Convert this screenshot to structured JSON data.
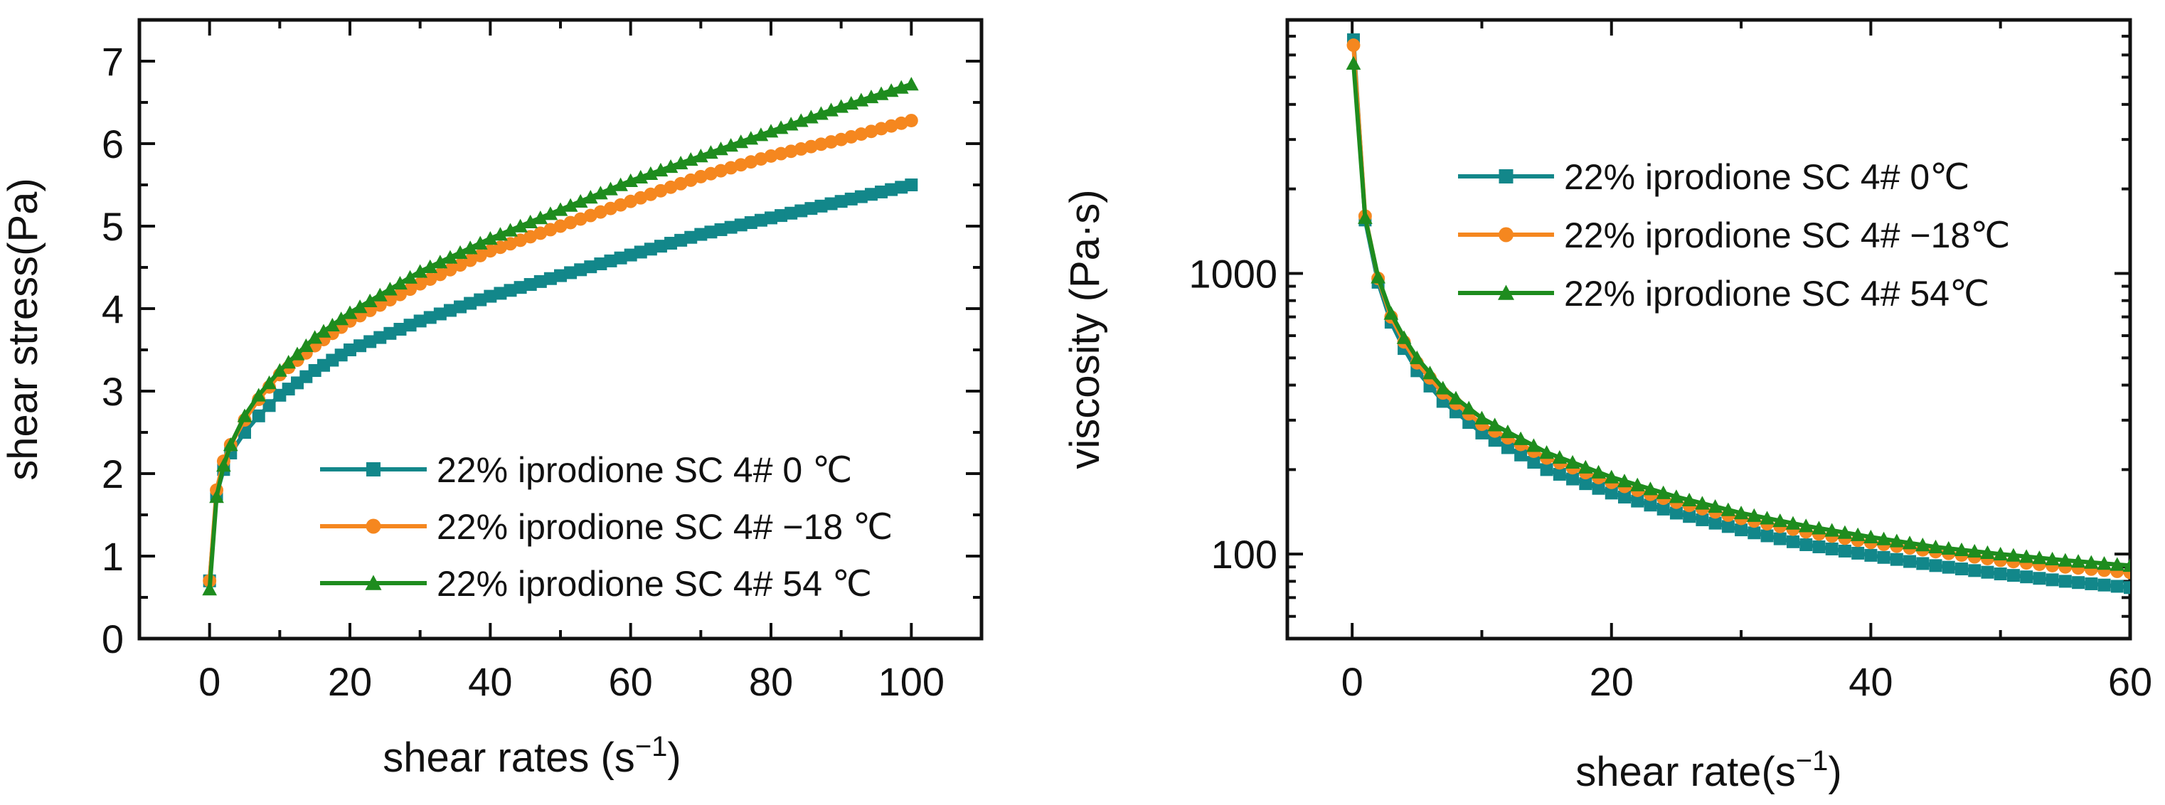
{
  "chart_data": [
    {
      "type": "line",
      "xlabel": "shear rates (s",
      "xlabel_sup": "−1",
      "xlabel_suffix": ")",
      "ylabel": "shear stress(Pa)",
      "xlim": [
        -10,
        110
      ],
      "ylim": [
        0,
        7.5
      ],
      "x_ticks": [
        0,
        20,
        40,
        60,
        80,
        100
      ],
      "y_ticks": [
        0,
        1,
        2,
        3,
        4,
        5,
        6,
        7
      ],
      "y_scale": "linear",
      "legend_position": "lower-right",
      "grid": false,
      "series": [
        {
          "name": "22% iprodione SC 4# 0 ℃",
          "color": "#12878a",
          "marker": "square",
          "x": [
            0,
            1,
            2,
            3,
            5,
            7,
            10,
            15,
            20,
            30,
            40,
            50,
            60,
            70,
            80,
            90,
            100
          ],
          "values": [
            0.7,
            1.75,
            2.05,
            2.25,
            2.5,
            2.7,
            2.95,
            3.25,
            3.5,
            3.85,
            4.15,
            4.4,
            4.65,
            4.9,
            5.1,
            5.3,
            5.5
          ]
        },
        {
          "name": "22% iprodione SC 4# −18 ℃",
          "color": "#f5871f",
          "marker": "circle",
          "x": [
            0,
            1,
            2,
            3,
            5,
            7,
            10,
            15,
            20,
            30,
            40,
            50,
            60,
            70,
            80,
            90,
            100
          ],
          "values": [
            0.7,
            1.8,
            2.15,
            2.35,
            2.65,
            2.9,
            3.2,
            3.55,
            3.85,
            4.3,
            4.7,
            5.0,
            5.3,
            5.6,
            5.85,
            6.05,
            6.28
          ]
        },
        {
          "name": "22% iprodione SC 4# 54 ℃",
          "color": "#1e8c1e",
          "marker": "triangle",
          "x": [
            0,
            1,
            2,
            3,
            5,
            7,
            10,
            15,
            20,
            30,
            40,
            50,
            60,
            70,
            80,
            90,
            100
          ],
          "values": [
            0.6,
            1.72,
            2.1,
            2.35,
            2.7,
            2.95,
            3.25,
            3.65,
            3.95,
            4.45,
            4.85,
            5.2,
            5.55,
            5.85,
            6.15,
            6.45,
            6.72
          ]
        }
      ]
    },
    {
      "type": "line",
      "xlabel": "shear rate(s",
      "xlabel_sup": "−1",
      "xlabel_suffix": ")",
      "ylabel": "viscosity (Pa·s)",
      "xlim": [
        -5,
        60
      ],
      "ylim": [
        50,
        8000
      ],
      "x_ticks": [
        0,
        20,
        40,
        60
      ],
      "y_ticks": [
        100,
        1000
      ],
      "y_scale": "log",
      "legend_position": "top-right",
      "grid": false,
      "series": [
        {
          "name": "22% iprodione SC 4# 0℃",
          "color": "#12878a",
          "marker": "square",
          "x": [
            0.1,
            1,
            2,
            3,
            4,
            5,
            7,
            10,
            15,
            20,
            25,
            30,
            35,
            40,
            45,
            50,
            55,
            60
          ],
          "values": [
            6800,
            1550,
            930,
            670,
            540,
            450,
            350,
            270,
            200,
            165,
            140,
            122,
            108,
            99,
            91,
            85,
            80,
            76
          ]
        },
        {
          "name": "22% iprodione SC 4# −18℃",
          "color": "#f5871f",
          "marker": "circle",
          "x": [
            0.1,
            1,
            2,
            3,
            4,
            5,
            7,
            10,
            15,
            20,
            25,
            30,
            35,
            40,
            45,
            50,
            55,
            60
          ],
          "values": [
            6500,
            1600,
            960,
            700,
            570,
            480,
            375,
            290,
            220,
            180,
            153,
            134,
            120,
            110,
            102,
            95,
            90,
            86
          ]
        },
        {
          "name": "22% iprodione SC 4# 54℃",
          "color": "#1e8c1e",
          "marker": "triangle",
          "x": [
            0.1,
            1,
            2,
            3,
            4,
            5,
            7,
            10,
            15,
            20,
            25,
            30,
            35,
            40,
            45,
            50,
            55,
            60
          ],
          "values": [
            5600,
            1580,
            970,
            720,
            590,
            500,
            390,
            305,
            230,
            188,
            160,
            140,
            126,
            115,
            106,
            100,
            95,
            91
          ]
        }
      ]
    }
  ]
}
